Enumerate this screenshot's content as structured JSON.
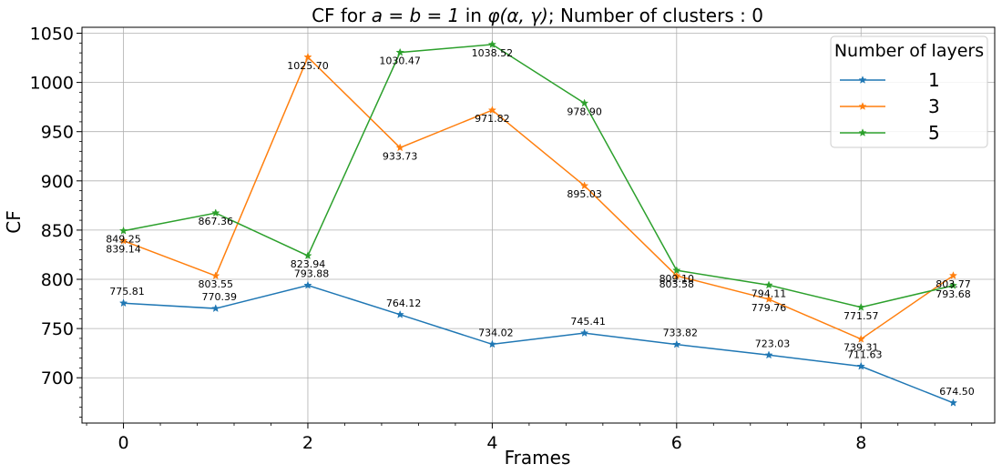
{
  "chart_data": {
    "type": "line",
    "title": "CF for a = b = 1 in φ(α, γ); Number of clusters : 0",
    "title_parts": {
      "prefix": "CF for ",
      "math1": "a = b = 1",
      "middle": " in ",
      "math2": "φ(α, γ)",
      "suffix": "; Number of clusters : 0"
    },
    "xlabel": "Frames",
    "ylabel": "CF",
    "xlim": [
      -0.45,
      9.45
    ],
    "ylim": [
      654,
      1056
    ],
    "xticks": [
      0,
      2,
      4,
      6,
      8
    ],
    "yticks": [
      700,
      750,
      800,
      850,
      900,
      950,
      1000,
      1050
    ],
    "grid": true,
    "legend": {
      "title": "Number of layers",
      "placement": "top-right"
    },
    "x": [
      0,
      1,
      2,
      3,
      4,
      5,
      6,
      7,
      8,
      9
    ],
    "series": [
      {
        "name": "1",
        "color": "#1f77b4",
        "values": [
          775.81,
          770.39,
          793.88,
          764.12,
          734.02,
          745.41,
          733.82,
          723.03,
          711.63,
          674.5
        ],
        "labels": [
          "775.81",
          "770.39",
          "793.88",
          "764.12",
          "734.02",
          "745.41",
          "733.82",
          "723.03",
          "711.63",
          "674.50"
        ]
      },
      {
        "name": "3",
        "color": "#ff7f0e",
        "values": [
          839.14,
          803.55,
          1025.7,
          933.73,
          971.82,
          895.03,
          803.58,
          779.76,
          739.31,
          803.77
        ],
        "labels": [
          "839.14",
          "803.55",
          "1025.70",
          "933.73",
          "971.82",
          "895.03",
          "803.58",
          "779.76",
          "739.31",
          "803.77"
        ]
      },
      {
        "name": "5",
        "color": "#2ca02c",
        "values": [
          849.25,
          867.36,
          823.94,
          1030.47,
          1038.52,
          978.9,
          809.1,
          794.11,
          771.57,
          793.68
        ],
        "labels": [
          "849.25",
          "867.36",
          "823.94",
          "1030.47",
          "1038.52",
          "978.90",
          "809.10",
          "794.11",
          "771.57",
          "793.68"
        ]
      }
    ]
  }
}
